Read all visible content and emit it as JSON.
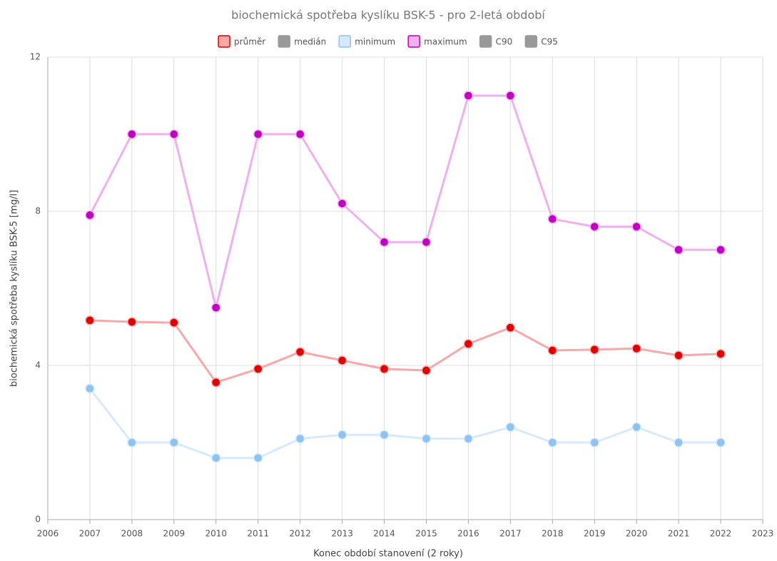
{
  "chart_data": {
    "type": "line",
    "title": "biochemická spotřeba kyslíku BSK-5 - pro 2-letá období",
    "x_label": "Konec období stanovení (2 roky)",
    "y_label": "biochemická spotřeba kyslíku BSK-5 [mg/l]",
    "x": [
      2007,
      2008,
      2009,
      2010,
      2011,
      2012,
      2013,
      2014,
      2015,
      2016,
      2017,
      2018,
      2019,
      2020,
      2021,
      2022
    ],
    "xlim": [
      2006,
      2023
    ],
    "xticks": [
      2006,
      2007,
      2008,
      2009,
      2010,
      2011,
      2012,
      2013,
      2014,
      2015,
      2016,
      2017,
      2018,
      2019,
      2020,
      2021,
      2022,
      2023
    ],
    "ylim": [
      0,
      12
    ],
    "yticks": [
      0,
      4,
      8,
      12
    ],
    "grid": true,
    "legend": "top",
    "series": [
      {
        "name": "průměr",
        "color": "#f7a8a8",
        "marker_color": "#e00000",
        "values": [
          5.17,
          5.13,
          5.11,
          3.56,
          3.91,
          4.35,
          4.13,
          3.91,
          3.87,
          4.56,
          4.98,
          4.39,
          4.41,
          4.44,
          4.26,
          4.3
        ]
      },
      {
        "name": "medián",
        "color": "#999999",
        "marker_color": "#999999",
        "values": [
          null,
          null,
          null,
          null,
          null,
          null,
          null,
          null,
          null,
          null,
          null,
          null,
          null,
          null,
          null,
          null
        ]
      },
      {
        "name": "minimum",
        "color": "#d6eaff",
        "marker_color": "#8ec2f0",
        "values": [
          3.4,
          2.0,
          2.0,
          1.6,
          1.6,
          2.1,
          2.2,
          2.2,
          2.1,
          2.1,
          2.4,
          2.0,
          2.0,
          2.4,
          2.0,
          2.0
        ]
      },
      {
        "name": "maximum",
        "color": "#f0b0f0",
        "marker_color": "#c000c0",
        "values": [
          7.9,
          10,
          10,
          5.5,
          10,
          10,
          8.2,
          7.2,
          7.2,
          11,
          11,
          7.8,
          7.6,
          7.6,
          7.0,
          7.0
        ]
      },
      {
        "name": "C90",
        "color": "#999999",
        "marker_color": "#999999",
        "values": [
          null,
          null,
          null,
          null,
          null,
          null,
          null,
          null,
          null,
          null,
          null,
          null,
          null,
          null,
          null,
          null
        ]
      },
      {
        "name": "C95",
        "color": "#999999",
        "marker_color": "#999999",
        "values": [
          null,
          null,
          null,
          null,
          null,
          null,
          null,
          null,
          null,
          null,
          null,
          null,
          null,
          null,
          null,
          null
        ]
      }
    ]
  }
}
